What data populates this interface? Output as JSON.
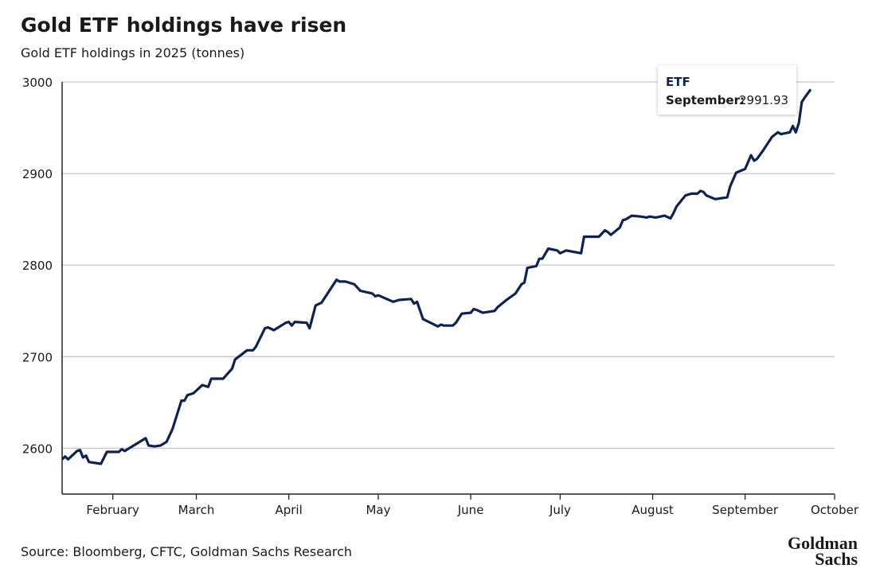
{
  "chart_data": {
    "type": "line",
    "title": "Gold ETF holdings have risen",
    "subtitle": "Gold ETF holdings in 2025 (tonnes)",
    "source": "Source: Bloomberg, CFTC, Goldman Sachs Research",
    "logo": [
      "Goldman",
      "Sachs"
    ],
    "tooltip": {
      "label": "September:"
    },
    "xlim": [
      15,
      274
    ],
    "xticks": [
      {
        "value": 32,
        "label": "February"
      },
      {
        "value": 60,
        "label": "March"
      },
      {
        "value": 91,
        "label": "April"
      },
      {
        "value": 121,
        "label": "May"
      },
      {
        "value": 152,
        "label": "June"
      },
      {
        "value": 182,
        "label": "July"
      },
      {
        "value": 213,
        "label": "August"
      },
      {
        "value": 244,
        "label": "September"
      },
      {
        "value": 274,
        "label": "October"
      }
    ],
    "ylim": [
      2550,
      3000
    ],
    "yticks": [
      2600,
      2700,
      2800,
      2900,
      3000
    ],
    "grid": true,
    "series": [
      {
        "name": "ETF",
        "color": "#0f2350",
        "x": [
          15,
          16,
          17,
          20,
          21,
          22,
          23,
          24,
          28,
          30,
          34,
          35,
          36,
          41,
          43,
          44,
          46,
          48,
          50,
          52,
          55,
          56,
          57,
          59,
          62,
          64,
          65,
          69,
          72,
          73,
          77,
          79,
          80,
          83,
          84,
          86,
          87,
          90,
          91,
          92,
          93,
          97,
          98,
          100,
          102,
          107,
          108,
          110,
          113,
          115,
          119,
          120,
          121,
          126,
          128,
          132,
          133,
          134,
          136,
          141,
          142,
          143,
          146,
          147,
          149,
          152,
          153,
          154,
          156,
          160,
          161,
          164,
          167,
          169,
          170,
          171,
          174,
          175,
          176,
          178,
          181,
          182,
          184,
          189,
          190,
          195,
          197,
          198,
          199,
          202,
          203,
          204,
          206,
          209,
          211,
          212,
          214,
          217,
          219,
          220,
          221,
          224,
          226,
          228,
          229,
          230,
          231,
          234,
          238,
          239,
          241,
          244,
          246,
          247,
          248,
          250,
          253,
          255,
          256,
          259,
          260,
          261,
          262,
          263,
          264,
          266
        ],
        "values": [
          2588,
          2591,
          2588,
          2597,
          2598,
          2590,
          2592,
          2585,
          2583,
          2596,
          2596,
          2599,
          2597,
          2607,
          2611,
          2603,
          2602,
          2603,
          2607,
          2621,
          2652,
          2652,
          2658,
          2660,
          2669,
          2667,
          2676,
          2676,
          2687,
          2697,
          2707,
          2707,
          2711,
          2731,
          2732,
          2729,
          2731,
          2737,
          2738,
          2734,
          2738,
          2737,
          2731,
          2756,
          2759,
          2784,
          2782,
          2782,
          2779,
          2772,
          2769,
          2766,
          2767,
          2760,
          2762,
          2763,
          2758,
          2760,
          2741,
          2733,
          2735,
          2734,
          2734,
          2737,
          2747,
          2748,
          2752,
          2751,
          2748,
          2750,
          2754,
          2762,
          2769,
          2779,
          2781,
          2797,
          2799,
          2807,
          2807,
          2818,
          2816,
          2813,
          2816,
          2813,
          2831,
          2831,
          2838,
          2836,
          2833,
          2841,
          2849,
          2850,
          2854,
          2853,
          2852,
          2853,
          2852,
          2854,
          2851,
          2857,
          2864,
          2876,
          2878,
          2878,
          2881,
          2880,
          2876,
          2872,
          2874,
          2886,
          2901,
          2905,
          2920,
          2914,
          2916,
          2925,
          2940,
          2945,
          2943,
          2945,
          2952,
          2945,
          2955,
          2978,
          2983,
          2991.93
        ]
      }
    ]
  }
}
